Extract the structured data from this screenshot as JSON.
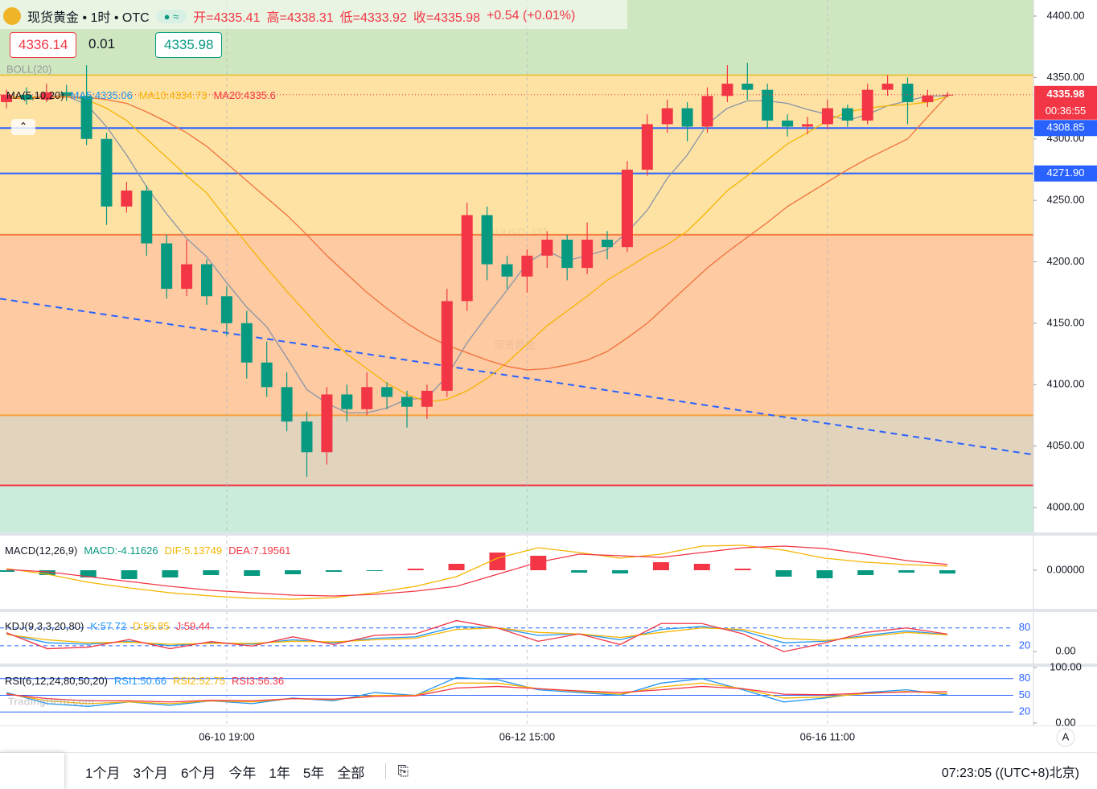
{
  "header": {
    "symbol": "现货黄金 • 1时 • OTC",
    "ohlc": [
      "开=4335.41",
      "高=4338.31",
      "低=4333.92",
      "收=4335.98"
    ],
    "change": "+0.54 (+0.01%)",
    "sell": "4336.14",
    "spread": "0.01",
    "buy": "4335.98"
  },
  "toolbar": {
    "ranges": [
      "1个月",
      "3个月",
      "6个月",
      "今年",
      "1年",
      "5年",
      "全部"
    ],
    "time": "07:23:05 ((UTC+8)北京)",
    "auto": "A",
    "brand": "TradingHero.com"
  },
  "chart_data": [
    {
      "type": "candlestick",
      "watermark": [
        "XAUUSD, 1时",
        "现货黄金"
      ],
      "boll": "BOLL(20)",
      "ma_title": "MA(5,10,20)",
      "categories": [
        null,
        null,
        null,
        null,
        null,
        null,
        null,
        null,
        null,
        null,
        null,
        "06-10 19:00",
        null,
        null,
        null,
        null,
        null,
        null,
        null,
        null,
        null,
        null,
        null,
        null,
        null,
        null,
        "06-12 15:00",
        null,
        null,
        null,
        null,
        null,
        null,
        null,
        null,
        null,
        null,
        null,
        null,
        null,
        null,
        "06-16 11:00",
        null,
        null,
        null,
        null,
        null,
        null
      ],
      "open": [
        4330,
        4336,
        4332,
        4338,
        4335,
        4300,
        4245,
        4258,
        4215,
        4178,
        4198,
        4172,
        4150,
        4118,
        4098,
        4070,
        4045,
        4092,
        4080,
        4098,
        4090,
        4082,
        4095,
        4168,
        4238,
        4198,
        4188,
        4205,
        4218,
        4195,
        4218,
        4212,
        4275,
        4312,
        4325,
        4310,
        4335,
        4345,
        4340,
        4315,
        4310,
        4312,
        4325,
        4315,
        4340,
        4345,
        4330,
        4335.41
      ],
      "high": [
        4340,
        4342,
        4345,
        4344,
        4360,
        4305,
        4265,
        4262,
        4222,
        4218,
        4202,
        4180,
        4160,
        4135,
        4110,
        4078,
        4098,
        4100,
        4110,
        4102,
        4095,
        4100,
        4178,
        4248,
        4245,
        4205,
        4210,
        4225,
        4222,
        4232,
        4225,
        4282,
        4320,
        4332,
        4330,
        4342,
        4360,
        4362,
        4345,
        4320,
        4318,
        4332,
        4328,
        4345,
        4352,
        4350,
        4340,
        4338.31
      ],
      "low": [
        4325,
        4328,
        4330,
        4331,
        4295,
        4230,
        4240,
        4205,
        4170,
        4172,
        4165,
        4140,
        4105,
        4090,
        4062,
        4025,
        4035,
        4070,
        4075,
        4080,
        4065,
        4072,
        4090,
        4160,
        4185,
        4178,
        4175,
        4195,
        4185,
        4190,
        4202,
        4208,
        4270,
        4305,
        4298,
        4305,
        4330,
        4332,
        4308,
        4302,
        4304,
        4308,
        4310,
        4312,
        4335,
        4312,
        4326,
        4333.92
      ],
      "close": [
        4336,
        4332,
        4338,
        4335,
        4300,
        4245,
        4258,
        4215,
        4178,
        4198,
        4172,
        4150,
        4118,
        4098,
        4070,
        4045,
        4092,
        4080,
        4098,
        4090,
        4082,
        4095,
        4168,
        4238,
        4198,
        4188,
        4205,
        4218,
        4195,
        4218,
        4212,
        4275,
        4312,
        4325,
        4310,
        4335,
        4345,
        4340,
        4315,
        4310,
        4312,
        4325,
        4315,
        4340,
        4345,
        4330,
        4335.41,
        4335.98
      ],
      "up_color": "#f23645",
      "down_color": "#089981",
      "series": [
        {
          "name": "MA5:4335.06",
          "color": "#2196f3",
          "line_color": "#8a94a6",
          "values": [
            4334,
            4334,
            4335,
            4335,
            4328,
            4310,
            4287,
            4261,
            4239,
            4219,
            4204,
            4183,
            4163,
            4147,
            4122,
            4096,
            4085,
            4077,
            4077,
            4081,
            4088,
            4089,
            4107,
            4134,
            4156,
            4177,
            4199,
            4209,
            4201,
            4205,
            4210,
            4224,
            4242,
            4268,
            4287,
            4312,
            4325,
            4331,
            4331,
            4329,
            4324,
            4320,
            4315,
            4320,
            4327,
            4331,
            4335,
            4335.06
          ]
        },
        {
          "name": "MA10:4334.73",
          "color": "#f5b400",
          "line_color": "#f5b400",
          "values": [
            4334,
            4334,
            4334,
            4335,
            4332,
            4325,
            4315,
            4300,
            4285,
            4270,
            4256,
            4235,
            4215,
            4195,
            4176,
            4158,
            4140,
            4125,
            4113,
            4101,
            4092,
            4086,
            4088,
            4095,
            4105,
            4118,
            4133,
            4148,
            4160,
            4172,
            4185,
            4195,
            4205,
            4214,
            4225,
            4241,
            4258,
            4270,
            4283,
            4296,
            4305,
            4315,
            4322,
            4325,
            4327,
            4328,
            4330,
            4334.73
          ]
        },
        {
          "name": "MA20:4335.6",
          "color": "#f23645",
          "line_color": "#f0703c",
          "values": [
            4333,
            4333,
            4334,
            4334,
            4334,
            4332,
            4329,
            4322,
            4314,
            4305,
            4294,
            4280,
            4266,
            4252,
            4238,
            4222,
            4205,
            4190,
            4175,
            4162,
            4150,
            4140,
            4132,
            4126,
            4120,
            4115,
            4112,
            4113,
            4116,
            4120,
            4127,
            4138,
            4150,
            4165,
            4180,
            4195,
            4208,
            4220,
            4232,
            4245,
            4255,
            4265,
            4275,
            4284,
            4292,
            4300,
            4318,
            4335.6
          ]
        }
      ],
      "zone_bounds": [
        4352,
        4222,
        4075,
        4018
      ],
      "zone_colors": [
        "#cfe7c0",
        "#fde2a4",
        "#fdcaa2",
        "#e2d3bd",
        "#c9ecdb"
      ],
      "zone_line_colors": [
        "#e3c84a",
        "#f57c3b",
        "#f5a03b",
        "#f23645"
      ],
      "price_lines": [
        {
          "value": 4308.85,
          "color": "#2962ff"
        },
        {
          "value": 4271.9,
          "label": "4271.90",
          "color": "#2962ff"
        }
      ],
      "trendline": {
        "values": [
          4170,
          4043
        ],
        "color": "#2962ff"
      },
      "countdown": "00:36:55",
      "ylim": [
        3979.7,
        4413.1
      ],
      "yticks": [
        {
          "value": 4400,
          "label": "4400.00"
        },
        {
          "value": 4350,
          "label": "4350.00"
        },
        {
          "value": 4300,
          "label": "4300.00"
        },
        {
          "value": 4250,
          "label": "4250.00"
        },
        {
          "value": 4200,
          "label": "4200.00"
        },
        {
          "value": 4150,
          "label": "4150.00"
        },
        {
          "value": 4100,
          "label": "4100.00"
        },
        {
          "value": 4050,
          "label": "4050.00"
        },
        {
          "value": 4000,
          "label": "4000.00"
        }
      ]
    },
    {
      "type": "macd",
      "title": "MACD(12,26,9)",
      "ylim": [
        -46,
        41
      ],
      "yticks": [
        {
          "value": 0,
          "label": "0.00000"
        }
      ],
      "series": [
        {
          "name": "MACD:-4.11626",
          "color": "#089981",
          "style": "bar",
          "up_color": "#f23645",
          "values": [
            -2,
            -6,
            -9,
            -11,
            -9,
            -6,
            -7,
            -5,
            -2,
            -1,
            2,
            8,
            22,
            18,
            -3,
            -4,
            10,
            8,
            2,
            -8,
            -10,
            -6,
            -3,
            -4.11626
          ]
        },
        {
          "name": "DIF:5.13749",
          "color": "#f5b400",
          "values": [
            2,
            -5,
            -15,
            -22,
            -28,
            -32,
            -35,
            -36,
            -34,
            -28,
            -20,
            -8,
            15,
            28,
            22,
            15,
            20,
            30,
            31,
            25,
            15,
            10,
            7,
            5.13749
          ]
        },
        {
          "name": "DEA:7.19561",
          "color": "#f23645",
          "values": [
            1,
            -2,
            -8,
            -14,
            -20,
            -25,
            -28,
            -31,
            -32,
            -30,
            -26,
            -20,
            -5,
            10,
            20,
            18,
            16,
            22,
            28,
            30,
            27,
            20,
            12,
            7.19561
          ]
        }
      ]
    },
    {
      "type": "line",
      "title": "KDJ(9,3,3,20,80)",
      "ylim": [
        -32,
        131
      ],
      "yticks": [
        {
          "value": 0,
          "label": "0.00"
        }
      ],
      "levels": [
        80,
        20
      ],
      "level_color": "#2962ff",
      "series": [
        {
          "name": "K:57.72",
          "color": "#2196f3",
          "values": [
            60,
            30,
            25,
            35,
            20,
            30,
            25,
            40,
            30,
            45,
            50,
            85,
            80,
            55,
            60,
            40,
            75,
            85,
            70,
            30,
            35,
            55,
            70,
            57.72
          ]
        },
        {
          "name": "D:56.85",
          "color": "#f5b400",
          "values": [
            58,
            40,
            30,
            32,
            25,
            28,
            28,
            35,
            33,
            40,
            45,
            75,
            80,
            65,
            60,
            48,
            65,
            80,
            75,
            45,
            38,
            50,
            65,
            56.85
          ]
        },
        {
          "name": "J:59.44",
          "color": "#f23645",
          "values": [
            64,
            10,
            15,
            41,
            10,
            34,
            19,
            50,
            24,
            55,
            60,
            105,
            80,
            35,
            60,
            24,
            95,
            95,
            60,
            0,
            29,
            65,
            80,
            59.44
          ]
        }
      ]
    },
    {
      "type": "line",
      "title": "RSI(6,12,24,80,50,20)",
      "ylim": [
        0,
        100
      ],
      "yticks": [
        {
          "value": 100,
          "label": "100.00"
        },
        {
          "value": 0,
          "label": "0.00"
        }
      ],
      "levels": [
        80,
        50,
        20
      ],
      "level_color": "#2962ff",
      "series": [
        {
          "name": "RSI1:50.66",
          "color": "#2196f3",
          "values": [
            55,
            35,
            30,
            38,
            32,
            40,
            35,
            45,
            40,
            55,
            50,
            82,
            78,
            60,
            55,
            50,
            72,
            80,
            60,
            38,
            45,
            55,
            60,
            50.66
          ]
        },
        {
          "name": "RSI2:52.75",
          "color": "#f5b400",
          "values": [
            53,
            40,
            35,
            38,
            35,
            40,
            38,
            44,
            42,
            50,
            50,
            72,
            72,
            62,
            57,
            52,
            65,
            72,
            62,
            45,
            47,
            53,
            57,
            52.75
          ]
        },
        {
          "name": "RSI3:56.36",
          "color": "#f23645",
          "values": [
            52,
            44,
            40,
            40,
            38,
            41,
            40,
            44,
            43,
            48,
            49,
            63,
            66,
            62,
            58,
            55,
            60,
            66,
            62,
            52,
            51,
            54,
            56,
            56.36
          ]
        }
      ]
    }
  ]
}
